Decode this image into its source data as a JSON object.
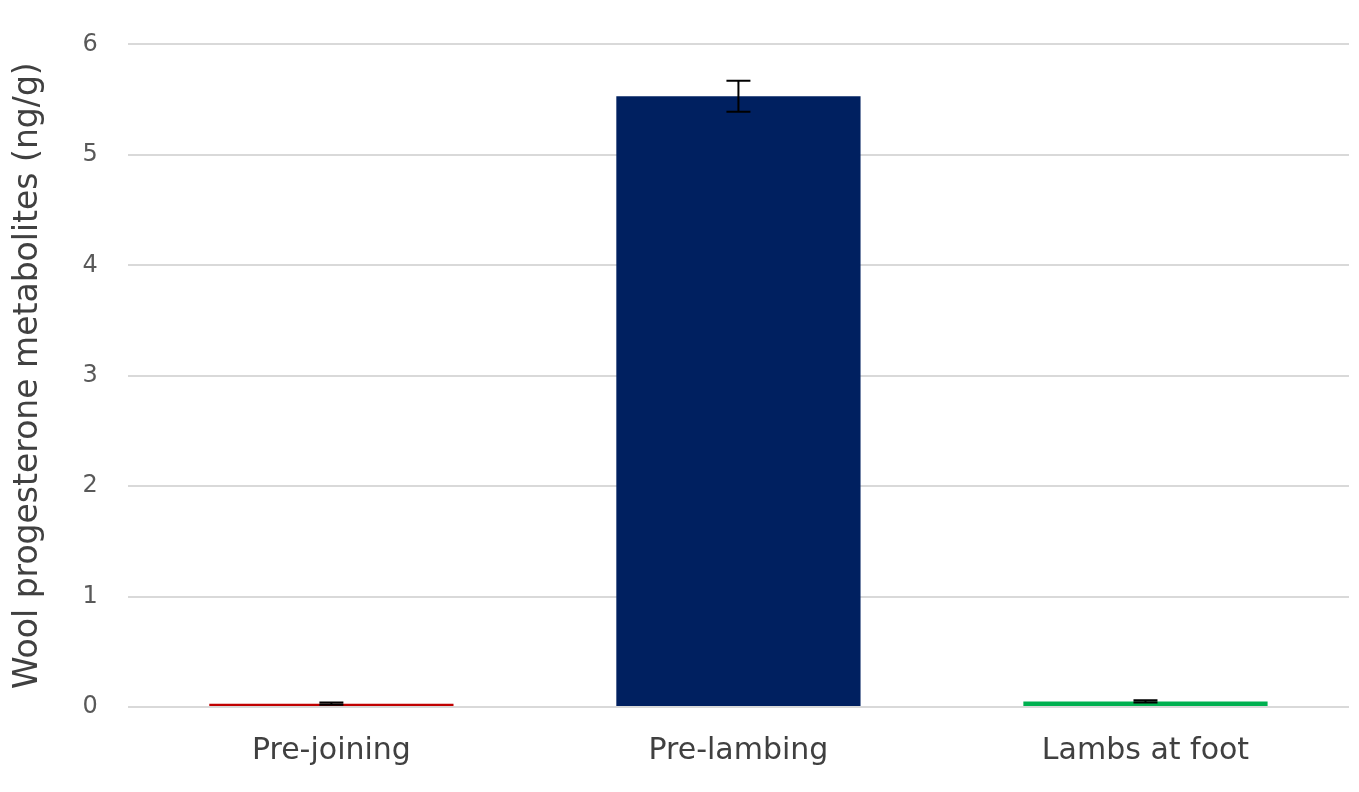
{
  "chart_data": {
    "type": "bar",
    "ylabel": "Wool progesterone metabolites (ng/g)",
    "categories": [
      "Pre-joining",
      "Pre-lambing",
      "Lambs at foot"
    ],
    "values": [
      0.03,
      5.53,
      0.05
    ],
    "colors": [
      "#c00000",
      "#002060",
      "#00b050"
    ],
    "errors": [
      0.01,
      0.14,
      0.01
    ],
    "ylim": [
      0,
      6
    ],
    "yticks": [
      0,
      1,
      2,
      3,
      4,
      5,
      6
    ],
    "grid": "y",
    "legend": false
  }
}
